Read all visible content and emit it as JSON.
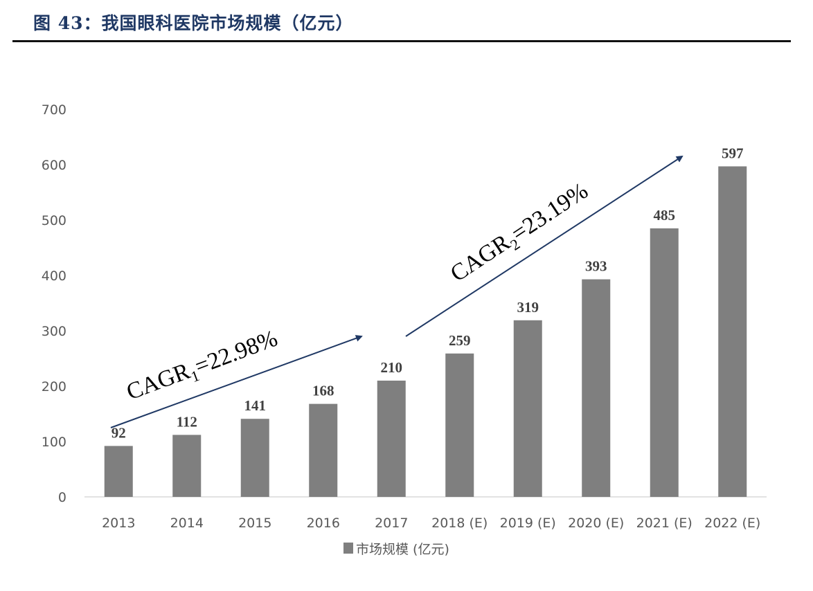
{
  "figure": {
    "title": "图 43：我国眼科医院市场规模（亿元）"
  },
  "colors": {
    "bar": "#7f7f7f",
    "arrow": "#1f3864",
    "title": "#1f3864"
  },
  "annotations": [
    {
      "prefix": "CAGR",
      "subscript": "1",
      "suffix": "=22.98%",
      "from": "2013",
      "to": "2017"
    },
    {
      "prefix": "CAGR",
      "subscript": "2",
      "suffix": "=23.19%",
      "from": "2017",
      "to": "2022 (E)"
    }
  ],
  "chart_data": {
    "type": "bar",
    "title": "我国眼科医院市场规模（亿元）",
    "xlabel": "",
    "ylabel": "",
    "ylim": [
      0,
      700
    ],
    "yticks": [
      0,
      100,
      200,
      300,
      400,
      500,
      600,
      700
    ],
    "grid": false,
    "legend_position": "bottom",
    "categories": [
      "2013",
      "2014",
      "2015",
      "2016",
      "2017",
      "2018 (E)",
      "2019 (E)",
      "2020 (E)",
      "2021 (E)",
      "2022 (E)"
    ],
    "series": [
      {
        "name": "市场规模 (亿元)",
        "values": [
          92,
          112,
          141,
          168,
          210,
          259,
          319,
          393,
          485,
          597
        ]
      }
    ]
  }
}
